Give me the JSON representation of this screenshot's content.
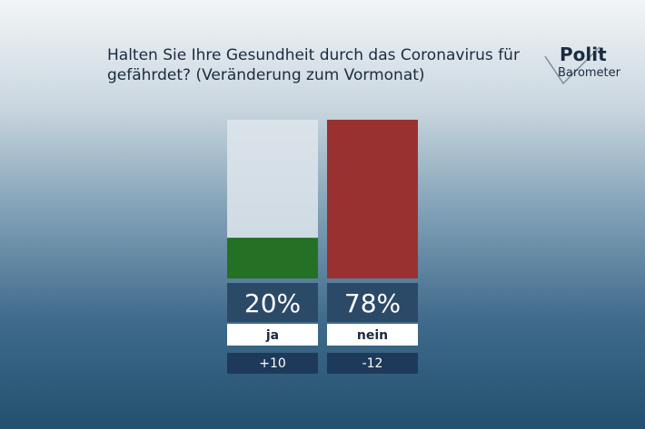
{
  "chart_data": {
    "type": "bar",
    "title": "Halten Sie Ihre Gesundheit durch das Coronavirus für gefährdet? (Veränderung zum Vormonat)",
    "logo": [
      "Polit",
      "Barometer"
    ],
    "categories": [
      "ja",
      "nein"
    ],
    "values": [
      20,
      78
    ],
    "value_labels": [
      "20%",
      "78%"
    ],
    "colors": [
      "#247024",
      "#9a3131"
    ],
    "changes": [
      10,
      -12
    ],
    "change_labels": [
      "+10",
      "-12"
    ]
  }
}
